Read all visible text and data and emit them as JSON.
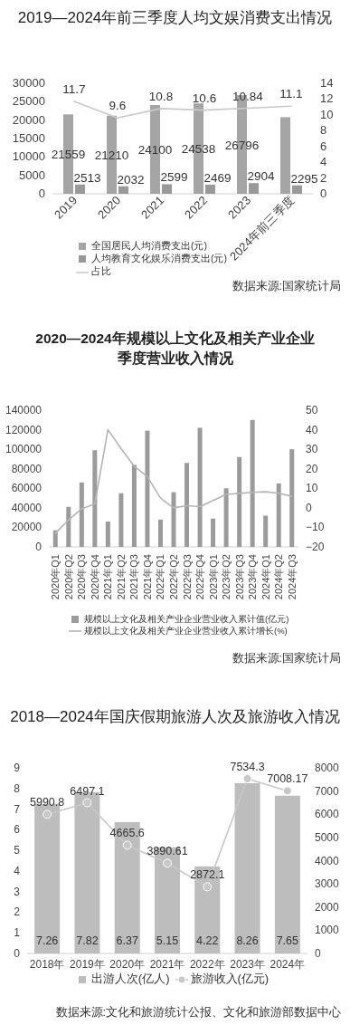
{
  "chart_data": [
    {
      "type": "bar",
      "title": "2019—2024年前三季度人均文娱消费支出情况",
      "categories": [
        "2019",
        "2020",
        "2021",
        "2022",
        "2023",
        "2024年前三季度"
      ],
      "series": [
        {
          "name": "全国居民人均消费支出(元)",
          "color": "#a5a5a5",
          "values": [
            21559,
            21210,
            24100,
            24538,
            26796,
            20800
          ],
          "value_labels": [
            "21559",
            "21210",
            "24100",
            "24538",
            "26796",
            null
          ]
        },
        {
          "name": "人均教育文化娱乐消费支出(元)",
          "color": "#999999",
          "values": [
            2513,
            2032,
            2599,
            2469,
            2904,
            2295
          ],
          "value_labels": [
            "2513",
            "2032",
            "2599",
            "2469",
            "2904",
            "2295"
          ]
        },
        {
          "name": "占比",
          "type": "line",
          "axis": "y2",
          "color": "#c9c9c9",
          "values": [
            11.7,
            9.6,
            10.8,
            10.6,
            10.84,
            11.1
          ],
          "value_labels": [
            "11.7",
            "9.6",
            "10.8",
            "10.6",
            "10.84",
            "11.1"
          ]
        }
      ],
      "ylim": [
        0,
        30000
      ],
      "yticks": [
        0,
        5000,
        10000,
        15000,
        20000,
        25000,
        30000
      ],
      "y2lim": [
        0,
        14
      ],
      "y2ticks": [
        0,
        2,
        4,
        6,
        8,
        10,
        12,
        14
      ],
      "legend": "bottom",
      "annotations": [
        "数据来源:国家统计局"
      ]
    },
    {
      "type": "bar",
      "title": "2020—2024年规模以上文化及相关产业企业季度营业收入情况",
      "categories": [
        "2020年Q1",
        "2020年Q2",
        "2020年Q3",
        "2020年Q4",
        "2021年Q1",
        "2021年Q2",
        "2021年Q3",
        "2021年Q4",
        "2022年Q1",
        "2022年Q2",
        "2022年Q3",
        "2022年Q4",
        "2023年Q1",
        "2023年Q2",
        "2023年Q3",
        "2023年Q4",
        "2024年Q1",
        "2024年Q2",
        "2024年Q3"
      ],
      "series": [
        {
          "name": "规模以上文化及相关产业企业营业收入累计值(亿元)",
          "color": "#9b9b9b",
          "values": [
            17000,
            41000,
            66000,
            99000,
            26000,
            55000,
            84000,
            119000,
            28000,
            56000,
            86000,
            122000,
            29000,
            60000,
            92000,
            130000,
            32000,
            65000,
            100000
          ]
        },
        {
          "name": "规模以上文化及相关产业企业营业收入累计增长(%)",
          "type": "line",
          "axis": "y2",
          "color": "#b5b5b5",
          "values": [
            -13,
            -6.2,
            -0.5,
            2,
            40,
            30.3,
            21.3,
            16,
            5,
            0,
            1.1,
            0.6,
            3.8,
            6.9,
            7.4,
            7.9,
            8.2,
            7.5,
            5.9
          ]
        }
      ],
      "ylim": [
        0,
        140000
      ],
      "yticks": [
        0,
        20000,
        40000,
        60000,
        80000,
        100000,
        120000,
        140000
      ],
      "y2lim": [
        -20,
        50
      ],
      "y2ticks": [
        {
          "value": -20,
          "label": "−20"
        },
        {
          "value": -10,
          "label": "−10"
        },
        0,
        10,
        20,
        30,
        40,
        50
      ],
      "legend": "bottom",
      "annotations": [
        "数据来源:国家统计局"
      ]
    },
    {
      "type": "bar",
      "title": "2018—2024年国庆假期旅游人次及旅游收入情况",
      "categories": [
        "2018年",
        "2019年",
        "2020年",
        "2021年",
        "2022年",
        "2023年",
        "2024年"
      ],
      "series": [
        {
          "name": "出游人次(亿人)",
          "color": "#bdbdbd",
          "values": [
            7.26,
            7.82,
            6.37,
            5.15,
            4.22,
            8.26,
            7.65
          ]
        },
        {
          "name": "旅游收入(亿元)",
          "type": "line",
          "axis": "y2",
          "color": "#c8c8c8",
          "values": [
            5990.8,
            6497.1,
            4665.6,
            3890.61,
            2872.1,
            7534.3,
            7008.17
          ]
        }
      ],
      "ylim": [
        0,
        9
      ],
      "yticks": [
        0,
        1,
        2,
        3,
        4,
        5,
        6,
        7,
        8,
        9
      ],
      "y2lim": [
        0,
        8000
      ],
      "y2ticks": [
        0,
        1000,
        2000,
        3000,
        4000,
        5000,
        6000,
        7000,
        8000
      ],
      "marker": "circle",
      "data_labels": true,
      "legend": "bottom",
      "annotations": [
        "数据来源:文化和旅游统计公报、文化和旅游部数据中心"
      ]
    }
  ]
}
